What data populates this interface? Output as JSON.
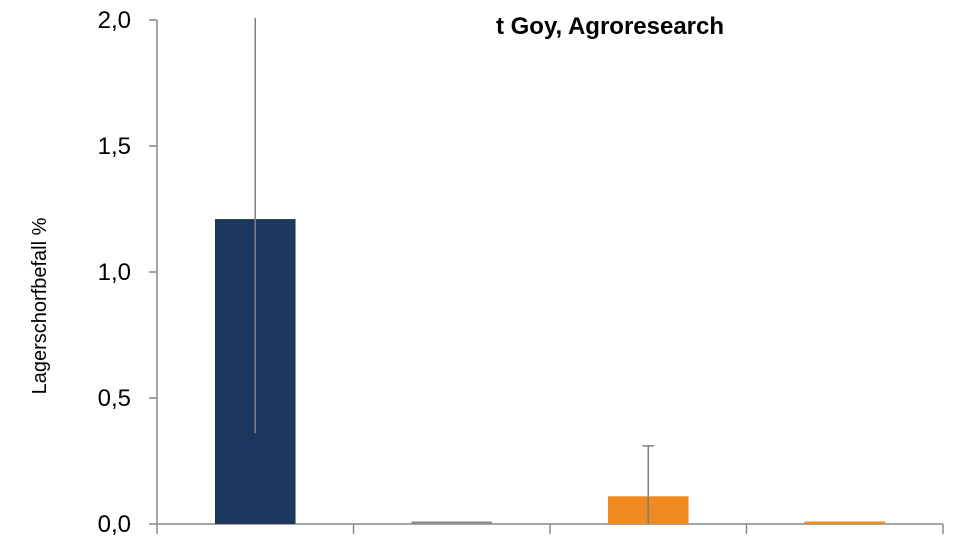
{
  "chart_data": {
    "type": "bar",
    "title": "t Goy, Agroresearch",
    "ylabel": "Lagerschorfbefall %",
    "xlabel": "",
    "ylim": [
      0,
      2.0
    ],
    "yticks": [
      "0,0",
      "0,5",
      "1,0",
      "1,5",
      "2,0"
    ],
    "categories": [
      "",
      "",
      "",
      ""
    ],
    "values": [
      1.21,
      0.01,
      0.11,
      0.01
    ],
    "errors": [
      0.85,
      0.0,
      0.2,
      0.0
    ],
    "colors": [
      "#1b375d",
      "#8c8c8c",
      "#ef8a21",
      "#ef8a21"
    ],
    "grid": false,
    "legend": "none"
  }
}
